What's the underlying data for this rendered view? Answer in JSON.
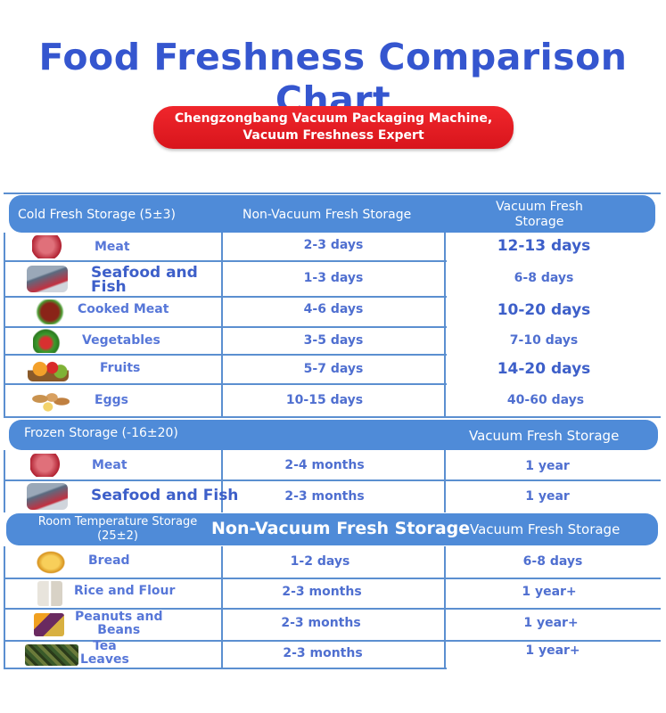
{
  "title": "Food Freshness Comparison Chart",
  "badge": {
    "line1": "Chengzongbang Vacuum Packaging Machine,",
    "line2": "Vacuum Freshness Expert"
  },
  "cold": {
    "header": "Cold Fresh Storage (5±3)",
    "col_non_vacuum": "Non-Vacuum Fresh Storage",
    "col_vacuum_line1": "Vacuum Fresh",
    "col_vacuum_line2": "Storage",
    "rows": [
      {
        "food": "Meat",
        "non_vacuum": "2-3 days",
        "vacuum": "12-13 days"
      },
      {
        "food_line1": "Seafood and",
        "food_line2": "Fish",
        "non_vacuum": "1-3 days",
        "vacuum": "6-8 days"
      },
      {
        "food": "Cooked Meat",
        "non_vacuum": "4-6 days",
        "vacuum": "10-20 days"
      },
      {
        "food": "Vegetables",
        "non_vacuum": "3-5 days",
        "vacuum": "7-10 days"
      },
      {
        "food": "Fruits",
        "non_vacuum": "5-7 days",
        "vacuum": "14-20 days"
      },
      {
        "food": "Eggs",
        "non_vacuum": "10-15 days",
        "vacuum": "40-60 days"
      }
    ]
  },
  "frozen": {
    "header": "Frozen Storage (-16±20)",
    "col_vacuum": "Vacuum Fresh Storage",
    "rows": [
      {
        "food": "Meat",
        "non_vacuum": "2-4 months",
        "vacuum": "1 year"
      },
      {
        "food": "Seafood and Fish",
        "non_vacuum": "2-3 months",
        "vacuum": "1 year"
      }
    ]
  },
  "room": {
    "header_line1": "Room Temperature Storage",
    "header_line2": "(25±2)",
    "col_non_vacuum": "Non-Vacuum Fresh Storage",
    "col_vacuum": "Vacuum Fresh Storage",
    "rows": [
      {
        "food": "Bread",
        "non_vacuum": "1-2 days",
        "vacuum": "6-8 days"
      },
      {
        "food": "Rice and Flour",
        "non_vacuum": "2-3 months",
        "vacuum": "1 year+"
      },
      {
        "food_line1": "Peanuts and",
        "food_line2": "Beans",
        "non_vacuum": "2-3 months",
        "vacuum": "1 year+"
      },
      {
        "food_line1": "Tea",
        "food_line2": "Leaves",
        "non_vacuum": "2-3 months",
        "vacuum": "1 year+"
      }
    ]
  },
  "icons": [
    "meat-icon",
    "fish-icon",
    "cooked-meat-icon",
    "vegetables-icon",
    "fruits-icon",
    "eggs-icon",
    "meat-icon",
    "fish-icon",
    "bread-icon",
    "rice-flour-icon",
    "peanuts-beans-icon",
    "tea-leaves-icon"
  ],
  "colors": {
    "title": "#3556cf",
    "badge": "#e81d23",
    "band": "#4f8bd8",
    "grid": "#5b8fd0",
    "text": "#4f6fd0"
  }
}
